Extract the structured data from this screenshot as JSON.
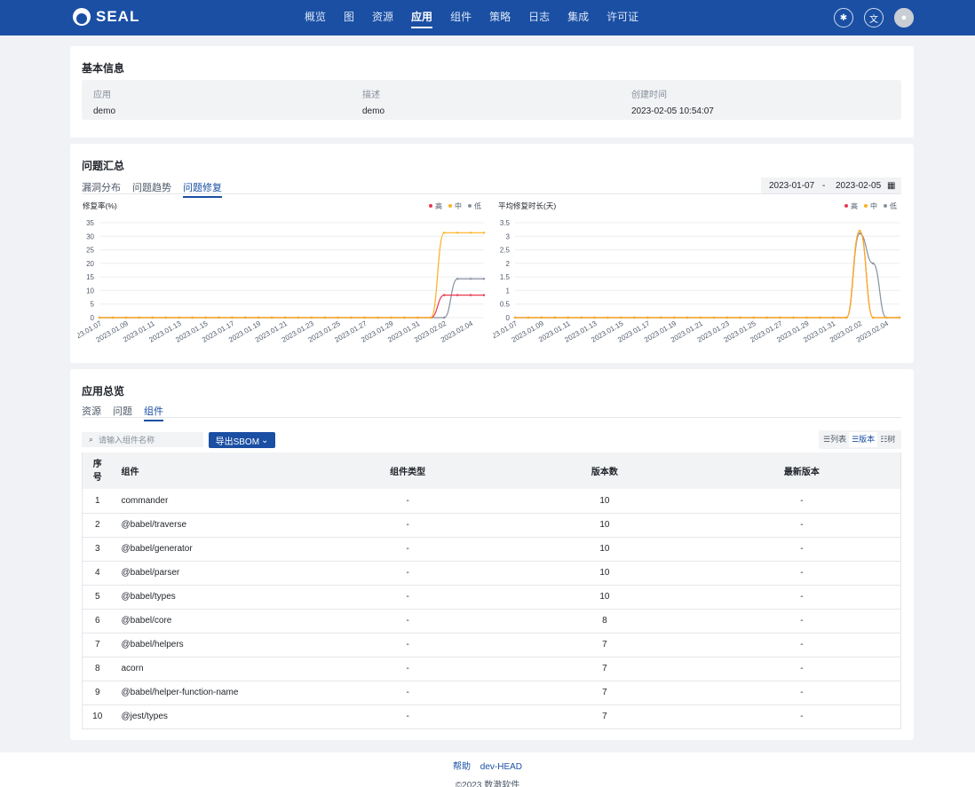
{
  "brand": {
    "name": "SEAL"
  },
  "nav": [
    "概览",
    "图",
    "资源",
    "应用",
    "组件",
    "策略",
    "日志",
    "集成",
    "许可证"
  ],
  "nav_active": 3,
  "header_icons": [
    "bug-icon",
    "translate-icon",
    "settings-icon"
  ],
  "basic_info": {
    "title": "基本信息",
    "fields": [
      {
        "label": "应用",
        "value": "demo"
      },
      {
        "label": "描述",
        "value": "demo"
      },
      {
        "label": "创建时间",
        "value": "2023-02-05 10:54:07"
      }
    ]
  },
  "issues": {
    "title": "问题汇总",
    "tabs": [
      "漏洞分布",
      "问题趋势",
      "问题修复"
    ],
    "active_tab": 2,
    "date_start": "2023-01-07",
    "date_sep": "-",
    "date_end": "2023-02-05"
  },
  "chart_data": [
    {
      "type": "line",
      "title": "修复率(%)",
      "legend": [
        "高",
        "中",
        "低"
      ],
      "x": [
        "2023.01.07",
        "2023.01.08",
        "2023.01.09",
        "2023.01.10",
        "2023.01.11",
        "2023.01.12",
        "2023.01.13",
        "2023.01.14",
        "2023.01.15",
        "2023.01.16",
        "2023.01.17",
        "2023.01.18",
        "2023.01.19",
        "2023.01.20",
        "2023.01.21",
        "2023.01.22",
        "2023.01.23",
        "2023.01.24",
        "2023.01.25",
        "2023.01.26",
        "2023.01.27",
        "2023.01.28",
        "2023.01.29",
        "2023.01.30",
        "2023.01.31",
        "2023.02.01",
        "2023.02.02",
        "2023.02.03",
        "2023.02.04",
        "2023.02.05"
      ],
      "xticks": [
        "2023.01.07",
        "2023.01.09",
        "2023.01.11",
        "2023.01.13",
        "2023.01.15",
        "2023.01.17",
        "2023.01.19",
        "2023.01.21",
        "2023.01.23",
        "2023.01.25",
        "2023.01.27",
        "2023.01.29",
        "2023.01.31",
        "2023.02.02",
        "2023.02.04"
      ],
      "yticks": [
        "0",
        "5",
        "10",
        "15",
        "20",
        "25",
        "30",
        "35"
      ],
      "ylim": [
        0,
        35
      ],
      "series": [
        {
          "name": "高",
          "color": "#e8384f",
          "values": [
            0,
            0,
            0,
            0,
            0,
            0,
            0,
            0,
            0,
            0,
            0,
            0,
            0,
            0,
            0,
            0,
            0,
            0,
            0,
            0,
            0,
            0,
            0,
            0,
            0,
            0,
            8.3,
            8.3,
            8.3,
            8.3
          ]
        },
        {
          "name": "中",
          "color": "#fbb11d",
          "values": [
            0,
            0,
            0,
            0,
            0,
            0,
            0,
            0,
            0,
            0,
            0,
            0,
            0,
            0,
            0,
            0,
            0,
            0,
            0,
            0,
            0,
            0,
            0,
            0,
            0,
            0,
            31.3,
            31.3,
            31.3,
            31.3
          ]
        },
        {
          "name": "低",
          "color": "#86909c",
          "values": [
            0,
            0,
            0,
            0,
            0,
            0,
            0,
            0,
            0,
            0,
            0,
            0,
            0,
            0,
            0,
            0,
            0,
            0,
            0,
            0,
            0,
            0,
            0,
            0,
            0,
            0,
            0,
            14.3,
            14.3,
            14.3
          ]
        }
      ]
    },
    {
      "type": "line",
      "title": "平均修复时长(天)",
      "legend": [
        "高",
        "中",
        "低"
      ],
      "x": [
        "2023.01.07",
        "2023.01.08",
        "2023.01.09",
        "2023.01.10",
        "2023.01.11",
        "2023.01.12",
        "2023.01.13",
        "2023.01.14",
        "2023.01.15",
        "2023.01.16",
        "2023.01.17",
        "2023.01.18",
        "2023.01.19",
        "2023.01.20",
        "2023.01.21",
        "2023.01.22",
        "2023.01.23",
        "2023.01.24",
        "2023.01.25",
        "2023.01.26",
        "2023.01.27",
        "2023.01.28",
        "2023.01.29",
        "2023.01.30",
        "2023.01.31",
        "2023.02.01",
        "2023.02.02",
        "2023.02.03",
        "2023.02.04",
        "2023.02.05"
      ],
      "xticks": [
        "2023.01.07",
        "2023.01.09",
        "2023.01.11",
        "2023.01.13",
        "2023.01.15",
        "2023.01.17",
        "2023.01.19",
        "2023.01.21",
        "2023.01.23",
        "2023.01.25",
        "2023.01.27",
        "2023.01.29",
        "2023.01.31",
        "2023.02.02",
        "2023.02.04"
      ],
      "yticks": [
        "0",
        "0.5",
        "1",
        "1.5",
        "2",
        "2.5",
        "3",
        "3.5"
      ],
      "ylim": [
        0,
        3.5
      ],
      "series": [
        {
          "name": "高",
          "color": "#e8384f",
          "values": [
            0,
            0,
            0,
            0,
            0,
            0,
            0,
            0,
            0,
            0,
            0,
            0,
            0,
            0,
            0,
            0,
            0,
            0,
            0,
            0,
            0,
            0,
            0,
            0,
            0,
            0,
            3.2,
            0,
            0,
            0
          ]
        },
        {
          "name": "中",
          "color": "#fbb11d",
          "values": [
            0,
            0,
            0,
            0,
            0,
            0,
            0,
            0,
            0,
            0,
            0,
            0,
            0,
            0,
            0,
            0,
            0,
            0,
            0,
            0,
            0,
            0,
            0,
            0,
            0,
            0,
            3.2,
            0,
            0,
            0
          ]
        },
        {
          "name": "低",
          "color": "#86909c",
          "values": [
            0,
            0,
            0,
            0,
            0,
            0,
            0,
            0,
            0,
            0,
            0,
            0,
            0,
            0,
            0,
            0,
            0,
            0,
            0,
            0,
            0,
            0,
            0,
            0,
            0,
            0,
            3.1,
            2,
            0,
            0
          ]
        }
      ]
    }
  ],
  "overview": {
    "title": "应用总览",
    "tabs": [
      "资源",
      "问题",
      "组件"
    ],
    "active_tab": 2,
    "search_placeholder": "请输入组件名称",
    "export_label": "导出SBOM",
    "view_options": [
      "列表",
      "版本",
      "树"
    ],
    "view_active": 1,
    "columns": [
      "序号",
      "组件",
      "组件类型",
      "版本数",
      "最新版本"
    ],
    "rows": [
      [
        "1",
        "commander",
        "-",
        "10",
        "-"
      ],
      [
        "2",
        "@babel/traverse",
        "-",
        "10",
        "-"
      ],
      [
        "3",
        "@babel/generator",
        "-",
        "10",
        "-"
      ],
      [
        "4",
        "@babel/parser",
        "-",
        "10",
        "-"
      ],
      [
        "5",
        "@babel/types",
        "-",
        "10",
        "-"
      ],
      [
        "6",
        "@babel/core",
        "-",
        "8",
        "-"
      ],
      [
        "7",
        "@babel/helpers",
        "-",
        "7",
        "-"
      ],
      [
        "8",
        "acorn",
        "-",
        "7",
        "-"
      ],
      [
        "9",
        "@babel/helper-function-name",
        "-",
        "7",
        "-"
      ],
      [
        "10",
        "@jest/types",
        "-",
        "7",
        "-"
      ]
    ]
  },
  "footer": {
    "links": [
      "帮助",
      "dev-HEAD"
    ],
    "copyright": "©2023 数澈软件"
  }
}
